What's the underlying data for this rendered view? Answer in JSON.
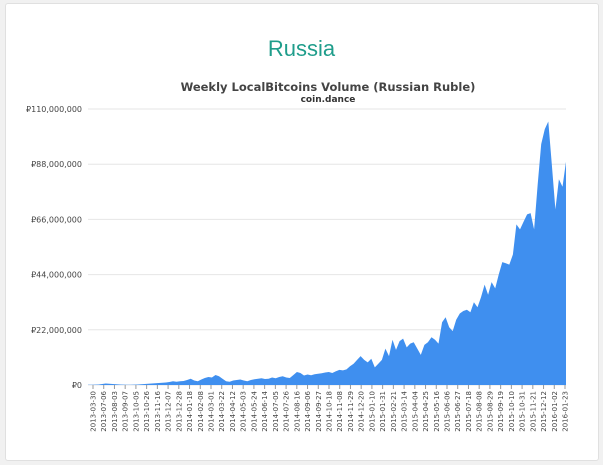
{
  "page": {
    "heading": "Russia"
  },
  "colors": {
    "heading": "#1f9d8b",
    "area": "#3f8fef",
    "background": "#f1f1f1",
    "card": "#ffffff"
  },
  "chart_data": {
    "type": "area",
    "title": "Weekly LocalBitcoins Volume (Russian Ruble)",
    "subtitle": "coin.dance",
    "xlabel": "",
    "ylabel": "",
    "ylim": [
      0,
      110000000
    ],
    "grid": true,
    "legend": "none",
    "y_ticks": [
      0,
      22000000,
      44000000,
      66000000,
      88000000,
      110000000
    ],
    "y_tick_labels": [
      "₽0",
      "₽22,000,000",
      "₽44,000,000",
      "₽66,000,000",
      "₽88,000,000",
      "₽110,000,000"
    ],
    "x_tick_labels": [
      "2013-03-30",
      "2013-07-06",
      "2013-08-03",
      "2013-09-07",
      "2013-10-05",
      "2013-10-26",
      "2013-11-16",
      "2013-12-07",
      "2013-12-28",
      "2014-01-18",
      "2014-02-08",
      "2014-03-01",
      "2014-03-22",
      "2014-04-12",
      "2014-05-03",
      "2014-05-24",
      "2014-06-14",
      "2014-07-05",
      "2014-07-26",
      "2014-08-16",
      "2014-09-06",
      "2014-09-27",
      "2014-10-18",
      "2014-11-08",
      "2014-11-29",
      "2014-12-20",
      "2015-01-10",
      "2015-01-31",
      "2015-02-21",
      "2015-03-14",
      "2015-04-04",
      "2015-04-25",
      "2015-05-16",
      "2015-06-06",
      "2015-06-27",
      "2015-07-18",
      "2015-08-08",
      "2015-08-29",
      "2015-09-19",
      "2015-10-10",
      "2015-10-31",
      "2015-11-21",
      "2015-12-12",
      "2016-01-02",
      "2016-01-23"
    ],
    "series": [
      {
        "values": [
          100000,
          100000,
          150000,
          200000,
          400000,
          600000,
          500000,
          400000,
          300000,
          200000,
          150000,
          100000,
          100000,
          150000,
          200000,
          300000,
          400000,
          500000,
          600000,
          700000,
          800000,
          900000,
          1000000,
          1200000,
          1500000,
          1300000,
          1500000,
          1600000,
          2000000,
          2500000,
          1800000,
          1500000,
          2200000,
          2800000,
          3200000,
          3000000,
          4000000,
          3500000,
          2500000,
          1500000,
          1300000,
          1800000,
          2000000,
          2200000,
          1800000,
          1500000,
          2000000,
          2300000,
          2500000,
          2700000,
          2400000,
          2500000,
          3000000,
          2700000,
          3200000,
          3500000,
          3000000,
          2800000,
          4000000,
          5200000,
          4800000,
          3800000,
          4200000,
          3900000,
          4300000,
          4500000,
          4700000,
          5000000,
          5200000,
          4800000,
          5500000,
          6000000,
          5800000,
          6200000,
          7500000,
          8500000,
          10000000,
          11500000,
          10000000,
          9000000,
          10500000,
          7000000,
          8500000,
          10000000,
          14500000,
          11500000,
          18000000,
          14000000,
          17500000,
          18500000,
          15000000,
          16500000,
          17000000,
          14500000,
          12000000,
          16000000,
          17000000,
          19000000,
          18000000,
          16500000,
          25000000,
          27000000,
          23000000,
          21500000,
          26000000,
          28500000,
          29500000,
          30000000,
          29000000,
          33000000,
          31000000,
          35000000,
          40000000,
          36000000,
          41000000,
          38500000,
          44000000,
          49000000,
          48500000,
          48000000,
          52000000,
          64000000,
          62000000,
          65000000,
          68000000,
          68500000,
          62000000,
          80000000,
          96000000,
          102000000,
          105000000,
          88000000,
          70000000,
          82000000,
          79000000,
          89000000
        ]
      }
    ]
  }
}
